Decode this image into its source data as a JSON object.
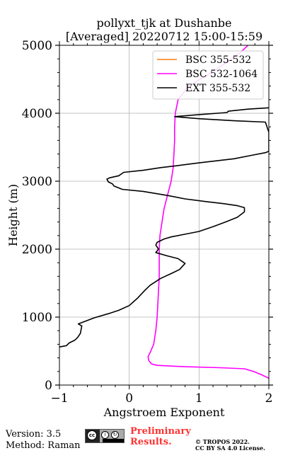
{
  "chart_data": {
    "type": "line",
    "title_line1": "pollyxt_tjk at Dushanbe",
    "title_line2": "[Averaged] 20220712 15:00-15:59",
    "xlabel": "Angstroem Exponent",
    "ylabel": "Height (m)",
    "xlim": [
      -1,
      2
    ],
    "ylim": [
      0,
      5000
    ],
    "x_ticks": [
      -1,
      0,
      1,
      2
    ],
    "x_tick_labels": [
      "−1",
      "0",
      "1",
      "2"
    ],
    "y_ticks": [
      0,
      1000,
      2000,
      3000,
      4000,
      5000
    ],
    "y_tick_labels": [
      "0",
      "1000",
      "2000",
      "3000",
      "4000",
      "5000"
    ],
    "grid": true,
    "legend_position": "top-right",
    "series": [
      {
        "name": "BSC 355-532",
        "color": "#ff7f0e",
        "points": []
      },
      {
        "name": "BSC 532-1064",
        "color": "#ff00ff",
        "points": [
          [
            2.0,
            100
          ],
          [
            1.9,
            150
          ],
          [
            1.78,
            200
          ],
          [
            1.65,
            240
          ],
          [
            1.3,
            255
          ],
          [
            0.8,
            270
          ],
          [
            0.4,
            290
          ],
          [
            0.32,
            310
          ],
          [
            0.28,
            360
          ],
          [
            0.27,
            420
          ],
          [
            0.3,
            480
          ],
          [
            0.35,
            600
          ],
          [
            0.38,
            800
          ],
          [
            0.4,
            1000
          ],
          [
            0.41,
            1200
          ],
          [
            0.42,
            1400
          ],
          [
            0.43,
            1600
          ],
          [
            0.43,
            1800
          ],
          [
            0.43,
            2000
          ],
          [
            0.44,
            2200
          ],
          [
            0.47,
            2400
          ],
          [
            0.5,
            2600
          ],
          [
            0.55,
            2800
          ],
          [
            0.6,
            3000
          ],
          [
            0.63,
            3200
          ],
          [
            0.64,
            3400
          ],
          [
            0.65,
            3600
          ],
          [
            0.65,
            3800
          ],
          [
            0.66,
            4000
          ],
          [
            0.7,
            4200
          ],
          [
            0.85,
            4400
          ],
          [
            1.1,
            4550
          ],
          [
            1.4,
            4750
          ],
          [
            1.6,
            4900
          ],
          [
            1.7,
            5000
          ]
        ]
      },
      {
        "name": "EXT 355-532",
        "color": "#000000",
        "points": [
          [
            -1.0,
            560
          ],
          [
            -0.9,
            580
          ],
          [
            -0.86,
            620
          ],
          [
            -0.78,
            660
          ],
          [
            -0.74,
            700
          ],
          [
            -0.7,
            760
          ],
          [
            -0.68,
            870
          ],
          [
            -0.73,
            900
          ],
          [
            -0.5,
            990
          ],
          [
            -0.3,
            1050
          ],
          [
            -0.15,
            1100
          ],
          [
            0.0,
            1170
          ],
          [
            0.12,
            1280
          ],
          [
            0.23,
            1400
          ],
          [
            0.3,
            1470
          ],
          [
            0.45,
            1570
          ],
          [
            0.62,
            1650
          ],
          [
            0.72,
            1700
          ],
          [
            0.8,
            1790
          ],
          [
            0.7,
            1860
          ],
          [
            0.55,
            1900
          ],
          [
            0.38,
            1950
          ],
          [
            0.42,
            2000
          ],
          [
            0.38,
            2060
          ],
          [
            0.4,
            2100
          ],
          [
            0.5,
            2150
          ],
          [
            0.6,
            2180
          ],
          [
            0.8,
            2220
          ],
          [
            1.0,
            2260
          ],
          [
            1.2,
            2330
          ],
          [
            1.38,
            2400
          ],
          [
            1.55,
            2470
          ],
          [
            1.65,
            2550
          ],
          [
            1.65,
            2610
          ],
          [
            1.55,
            2640
          ],
          [
            1.35,
            2670
          ],
          [
            1.1,
            2700
          ],
          [
            0.8,
            2740
          ],
          [
            0.55,
            2790
          ],
          [
            0.2,
            2850
          ],
          [
            -0.1,
            2880
          ],
          [
            -0.22,
            2930
          ],
          [
            -0.24,
            2960
          ],
          [
            -0.3,
            2990
          ],
          [
            -0.32,
            3030
          ],
          [
            -0.28,
            3050
          ],
          [
            -0.15,
            3080
          ],
          [
            -0.08,
            3130
          ],
          [
            0.2,
            3160
          ],
          [
            0.45,
            3200
          ],
          [
            0.7,
            3230
          ],
          [
            1.0,
            3270
          ],
          [
            1.5,
            3330
          ],
          [
            1.75,
            3380
          ],
          [
            1.95,
            3420
          ],
          [
            2.0,
            3440
          ],
          [
            2.0,
            3720
          ],
          [
            1.95,
            3870
          ],
          [
            1.5,
            3890
          ],
          [
            1.0,
            3920
          ],
          [
            0.65,
            3950
          ],
          [
            1.0,
            3980
          ],
          [
            1.4,
            4010
          ],
          [
            1.42,
            4030
          ],
          [
            1.7,
            4060
          ],
          [
            2.0,
            4080
          ]
        ]
      }
    ],
    "axis_color": "#000000",
    "grid_color": "#b0b0b0"
  },
  "footer": {
    "version": "Version: 3.5",
    "method": "Method: Raman",
    "preliminary_line1": "Preliminary",
    "preliminary_line2": "Results.",
    "copyright_line1": "© TROPOS 2022.",
    "copyright_line2": "CC BY SA 4.0 License.",
    "cc_badge_text": "cc",
    "cc_badge_icons": [
      "i",
      "↻"
    ],
    "cc_badge_tags": "BY SA"
  }
}
